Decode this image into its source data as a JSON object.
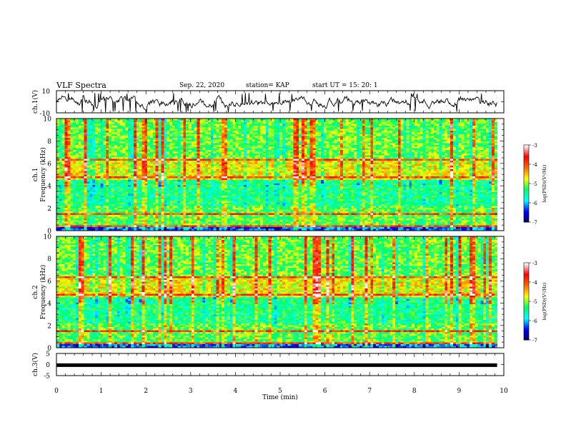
{
  "header": {
    "title": "VLF Spectra",
    "date": "Sep. 22, 2020",
    "station": "station= KAP",
    "start": "start  UT =   15: 20: 1"
  },
  "chart_data": [
    {
      "type": "line",
      "ylabel": "ch.1(V)",
      "ylim": [
        -10,
        10
      ],
      "yticks": [
        "10",
        "-10"
      ],
      "xlim": [
        0,
        10
      ],
      "series": [
        {
          "color": "#000000",
          "description": "noisy waveform around 0 V, roughly -8 to +8 V, with sharp negative spikes"
        }
      ]
    },
    {
      "type": "heatmap",
      "ylabel": "ch.1\nFrequency (kHz)",
      "ylim": [
        0,
        10
      ],
      "yticks": [
        "0",
        "2",
        "4",
        "6",
        "8",
        "10"
      ],
      "xlim": [
        0,
        9.85
      ],
      "colorbar": {
        "label": "log(PSD)(V²/Hz)",
        "range": [
          -7,
          -3
        ],
        "ticks": [
          "-3",
          "-4",
          "-5",
          "-6",
          "-7"
        ]
      }
    },
    {
      "type": "heatmap",
      "ylabel": "ch.2\nFrequency (kHz)",
      "ylim": [
        0,
        10
      ],
      "yticks": [
        "0",
        "2",
        "4",
        "6",
        "8",
        "10"
      ],
      "xlim": [
        0,
        9.85
      ],
      "colorbar": {
        "label": "log(PSD)(V²/Hz)",
        "range": [
          -7,
          -3
        ],
        "ticks": [
          "-3",
          "-4",
          "-5",
          "-6",
          "-7"
        ]
      }
    },
    {
      "type": "line",
      "ylabel": "ch.3(V)",
      "ylim": [
        -5,
        5
      ],
      "yticks": [
        "5",
        "0",
        "-5"
      ],
      "xlim": [
        0,
        10
      ],
      "xlabel": "Time (min)",
      "xticks": [
        "0",
        "1",
        "2",
        "3",
        "4",
        "5",
        "6",
        "7",
        "8",
        "9",
        "10"
      ],
      "series": [
        {
          "color": "#000000",
          "level": -0.3,
          "description": "thick flat trace just below 0 V"
        }
      ]
    }
  ],
  "colors": {
    "scale": [
      "#00005a",
      "#0000ff",
      "#00ffff",
      "#00ff66",
      "#ffff00",
      "#ff6600",
      "#ff0000",
      "#ffffff"
    ]
  }
}
